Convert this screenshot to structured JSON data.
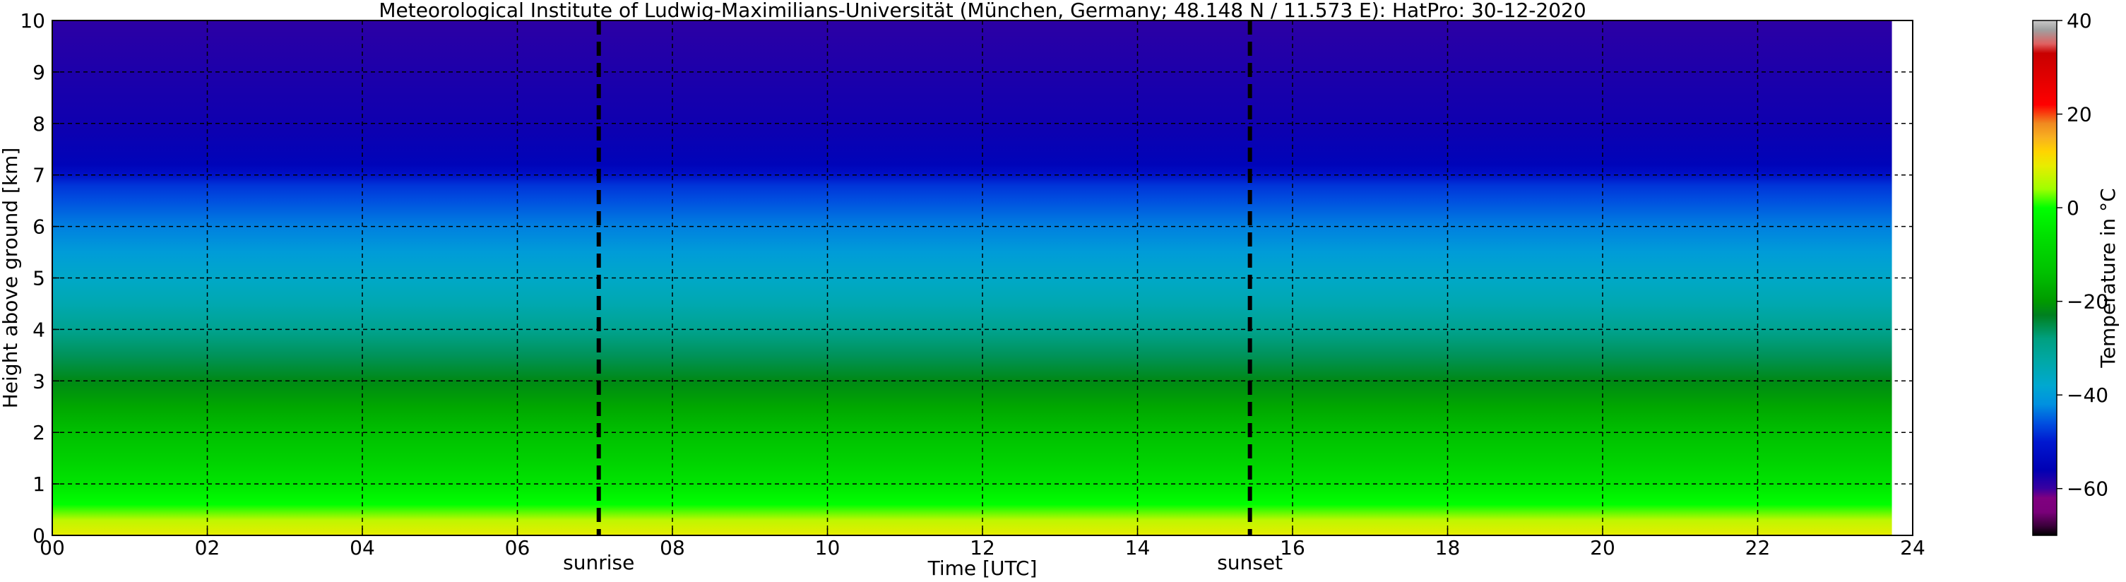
{
  "chart_data": {
    "type": "heatmap",
    "title": "Meteorological Institute of Ludwig-Maximilians-Universität (München, Germany; 48.148 N / 11.573 E):    HatPro: 30-12-2020",
    "xlabel": "Time [UTC]",
    "ylabel": "Height above ground [km]",
    "xlim": [
      0,
      24
    ],
    "ylim": [
      0,
      10
    ],
    "x_ticks": [
      0,
      2,
      4,
      6,
      8,
      10,
      12,
      14,
      16,
      18,
      20,
      22,
      24
    ],
    "x_tick_labels": [
      "00",
      "02",
      "04",
      "06",
      "08",
      "10",
      "12",
      "14",
      "16",
      "18",
      "20",
      "22",
      "24"
    ],
    "y_ticks": [
      0,
      1,
      2,
      3,
      4,
      5,
      6,
      7,
      8,
      9,
      10
    ],
    "y_tick_labels": [
      "0",
      "1",
      "2",
      "3",
      "4",
      "5",
      "6",
      "7",
      "8",
      "9",
      "10"
    ],
    "grid": true,
    "events": [
      {
        "label": "sunrise",
        "time": 7.05
      },
      {
        "label": "sunset",
        "time": 15.45
      }
    ],
    "data_end_time": 23.75,
    "temperature_profile": {
      "height_km": [
        0.0,
        0.3,
        0.6,
        1.0,
        1.5,
        2.0,
        2.5,
        3.0,
        3.5,
        4.0,
        4.5,
        5.0,
        5.5,
        6.0,
        6.5,
        6.8,
        7.0,
        7.2,
        8.0,
        9.0,
        10.0
      ],
      "temperature_c": [
        9,
        6,
        0,
        -5,
        -10,
        -14,
        -18,
        -22,
        -26,
        -30,
        -34,
        -37,
        -40,
        -43,
        -46,
        -48,
        -52,
        -55,
        -57,
        -58,
        -59
      ]
    },
    "colorbar": {
      "label": "Temperature in °C",
      "vmin": -70,
      "vmax": 40,
      "ticks": [
        -60,
        -40,
        -20,
        0,
        20,
        40
      ],
      "tick_labels": [
        "−60",
        "−40",
        "−20",
        "0",
        "20",
        "40"
      ]
    }
  }
}
